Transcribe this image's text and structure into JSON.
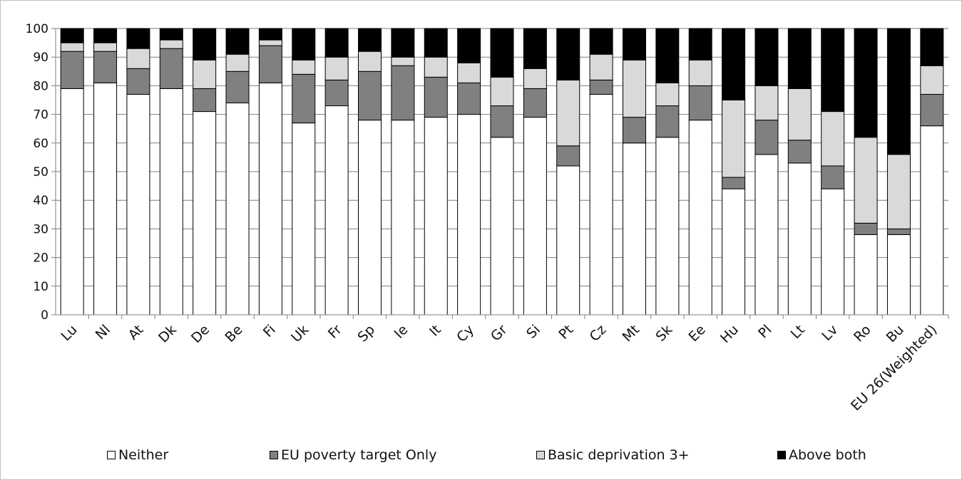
{
  "chart_data": {
    "type": "bar",
    "stacked": true,
    "categories": [
      "Lu",
      "Nl",
      "At",
      "Dk",
      "De",
      "Be",
      "Fi",
      "Uk",
      "Fr",
      "Sp",
      "Ie",
      "It",
      "Cy",
      "Gr",
      "Si",
      "Pt",
      "Cz",
      "Mt",
      "Sk",
      "Ee",
      "Hu",
      "Pl",
      "Lt",
      "Lv",
      "Ro",
      "Bu",
      "EU 26(Weighted)"
    ],
    "series": [
      {
        "name": "Neither",
        "color": "#ffffff",
        "values": [
          79,
          81,
          77,
          79,
          71,
          74,
          81,
          67,
          73,
          68,
          68,
          69,
          70,
          62,
          69,
          52,
          77,
          60,
          62,
          68,
          44,
          56,
          53,
          44,
          28,
          28,
          66
        ]
      },
      {
        "name": "EU poverty target Only",
        "color": "#808080",
        "values": [
          13,
          11,
          9,
          14,
          8,
          11,
          13,
          17,
          9,
          17,
          19,
          14,
          11,
          11,
          10,
          7,
          5,
          9,
          11,
          12,
          4,
          12,
          8,
          8,
          4,
          2,
          11
        ]
      },
      {
        "name": "Basic deprivation 3+",
        "color": "#d9d9d9",
        "values": [
          3,
          3,
          7,
          3,
          10,
          6,
          2,
          5,
          8,
          7,
          3,
          7,
          7,
          10,
          7,
          23,
          9,
          20,
          8,
          9,
          27,
          12,
          18,
          19,
          30,
          26,
          10
        ]
      },
      {
        "name": "Above both",
        "color": "#000000",
        "values": [
          5,
          5,
          7,
          4,
          11,
          9,
          4,
          11,
          10,
          8,
          10,
          10,
          12,
          17,
          14,
          18,
          9,
          11,
          19,
          11,
          25,
          20,
          21,
          29,
          38,
          44,
          13
        ]
      }
    ],
    "ylim": [
      0,
      100
    ],
    "yticks": [
      0,
      10,
      20,
      30,
      40,
      50,
      60,
      70,
      80,
      90,
      100
    ],
    "grid": true,
    "legend_position": "bottom"
  }
}
